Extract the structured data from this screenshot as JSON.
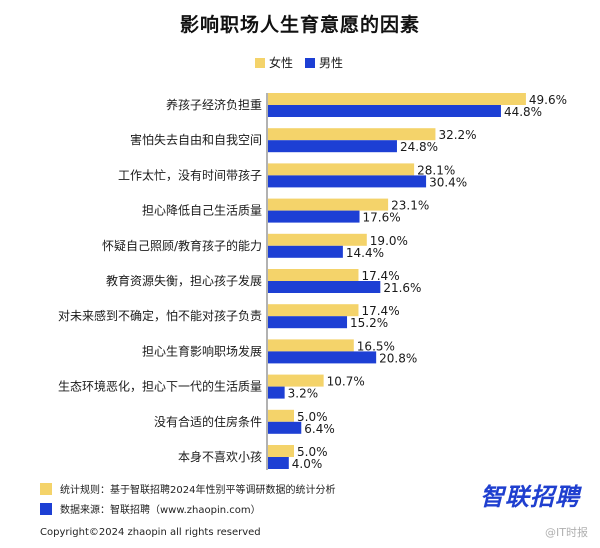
{
  "title": "影响职场人生育意愿的因素",
  "legend": [
    {
      "label": "女性",
      "color": "#f4d36a"
    },
    {
      "label": "男性",
      "color": "#1d3fd4"
    }
  ],
  "chart_data": {
    "type": "bar",
    "orientation": "horizontal",
    "title": "影响职场人生育意愿的因素",
    "categories": [
      "养孩子经济负担重",
      "害怕失去自由和自我空间",
      "工作太忙，没有时间带孩子",
      "担心降低自己生活质量",
      "怀疑自己照顾/教育孩子的能力",
      "教育资源失衡，担心孩子发展",
      "对未来感到不确定，怕不能对孩子负责",
      "担心生育影响职场发展",
      "生态环境恶化，担心下一代的生活质量",
      "没有合适的住房条件",
      "本身不喜欢小孩"
    ],
    "series": [
      {
        "name": "女性",
        "color": "#f4d36a",
        "values": [
          49.6,
          32.2,
          28.1,
          23.1,
          19.0,
          17.4,
          17.4,
          16.5,
          10.7,
          5.0,
          5.0
        ],
        "labels": [
          "49.6%",
          "32.2%",
          "28.1%",
          "23.1%",
          "19.0%",
          "17.4%",
          "17.4%",
          "16.5%",
          "10.7%",
          "5.0%",
          "5.0%"
        ]
      },
      {
        "name": "男性",
        "color": "#1d3fd4",
        "values": [
          44.8,
          24.8,
          30.4,
          17.6,
          14.4,
          21.6,
          15.2,
          20.8,
          3.2,
          6.4,
          4.0
        ],
        "labels": [
          "44.8%",
          "24.8%",
          "30.4%",
          "17.6%",
          "14.4%",
          "21.6%",
          "15.2%",
          "20.8%",
          "3.2%",
          "6.4%",
          "4.0%"
        ]
      }
    ],
    "xlim": [
      0,
      50
    ],
    "unit": "%"
  },
  "footer": {
    "notes": [
      {
        "text": "统计规则：基于智联招聘2024年性别平等调研数据的统计分析",
        "color": "#f4d36a"
      },
      {
        "text": "数据来源：智联招聘（www.zhaopin.com）",
        "color": "#1d3fd4"
      }
    ],
    "brand": "智联招聘",
    "copyright": "Copyright©2024 zhaopin all rights reserved",
    "watermark": "@IT时报"
  }
}
